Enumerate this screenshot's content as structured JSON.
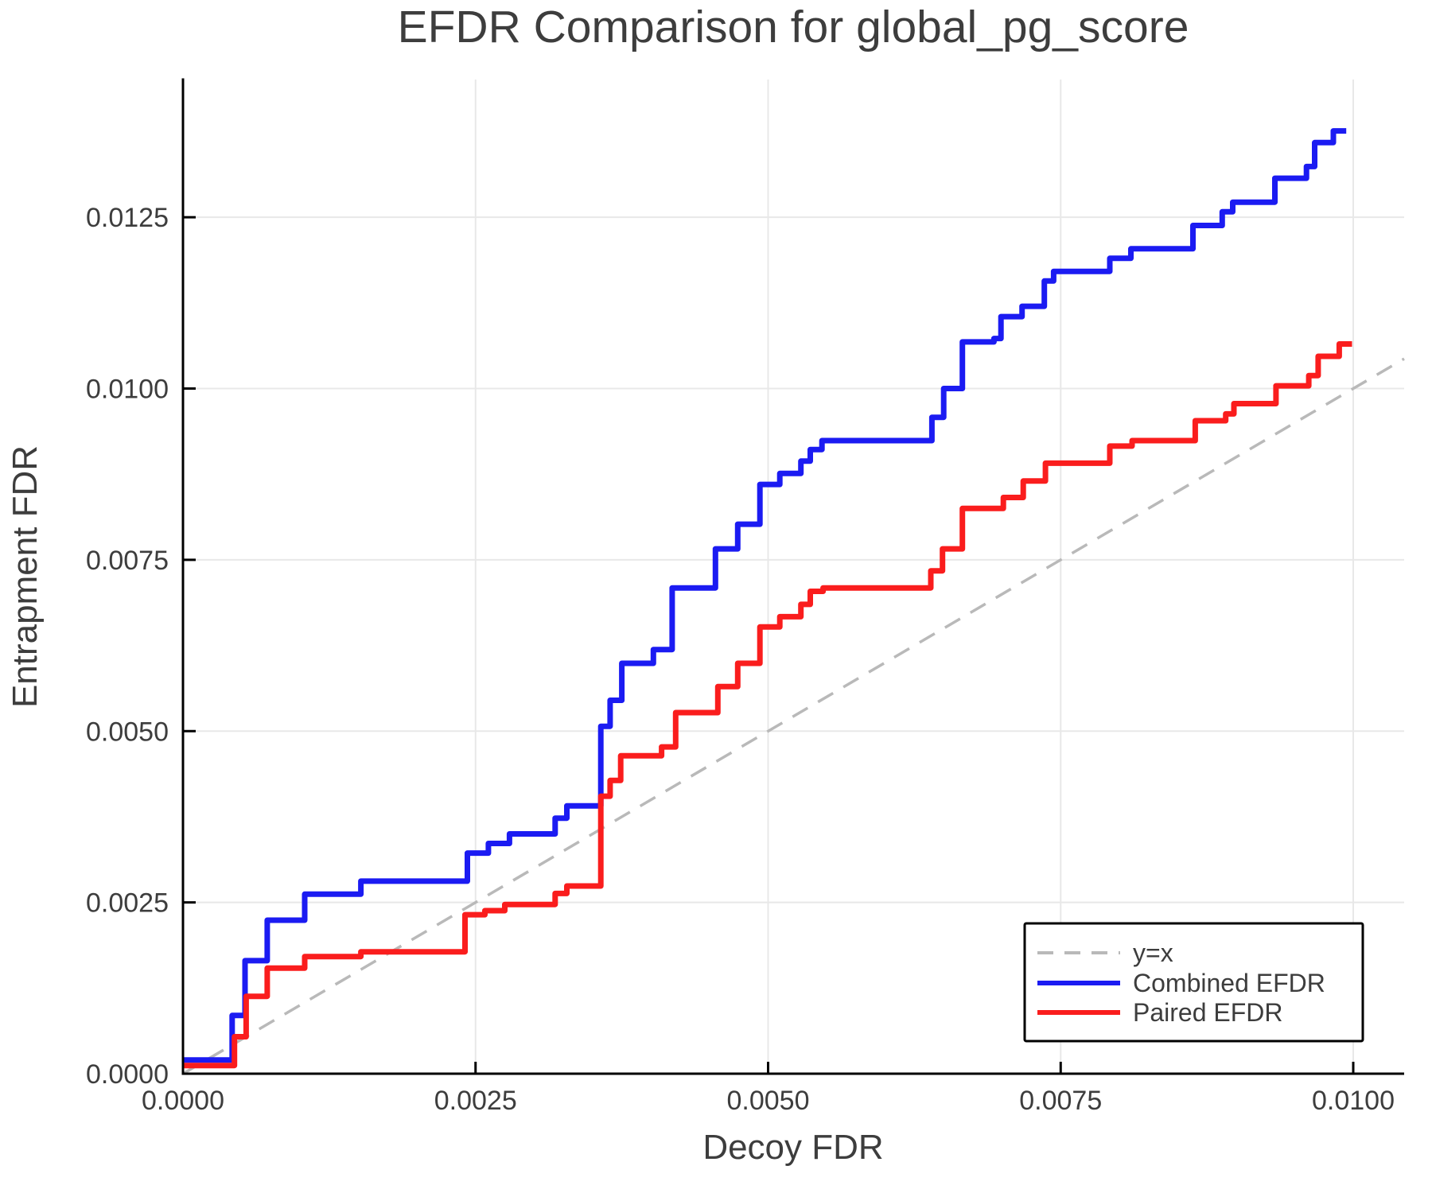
{
  "chart_data": {
    "type": "line",
    "title": "EFDR Comparison for global_pg_score",
    "xlabel": "Decoy FDR",
    "ylabel": "Entrapment FDR",
    "grid": true,
    "legend_position": "bottom-right",
    "colors": {
      "grid": "#e8e8e8",
      "spine": "#000000",
      "text": "#3d3d3d",
      "identity": "#b9b9b9",
      "combined": "#1b1bf2",
      "paired": "#fa1d1d"
    },
    "x_axis": {
      "min": 0,
      "max": 0.010435,
      "ticks": [
        {
          "v": 0.0,
          "label": "0.0000"
        },
        {
          "v": 0.0025,
          "label": "0.0025"
        },
        {
          "v": 0.005,
          "label": "0.0050"
        },
        {
          "v": 0.0075,
          "label": "0.0075"
        },
        {
          "v": 0.01,
          "label": "0.0100"
        }
      ]
    },
    "y_axis": {
      "min": 0,
      "max": 0.01451,
      "ticks": [
        {
          "v": 0.0,
          "label": "0.0000"
        },
        {
          "v": 0.0025,
          "label": "0.0025"
        },
        {
          "v": 0.005,
          "label": "0.0050"
        },
        {
          "v": 0.0075,
          "label": "0.0075"
        },
        {
          "v": 0.01,
          "label": "0.0100"
        },
        {
          "v": 0.0125,
          "label": "0.0125"
        }
      ]
    },
    "series": [
      {
        "name": "y=x",
        "type": "line",
        "color": "#b9b9b9",
        "dash": true,
        "points": [
          [
            0,
            0
          ],
          [
            0.010435,
            0.010435
          ]
        ]
      },
      {
        "name": "Combined EFDR",
        "type": "step-hv",
        "color": "#1b1bf2",
        "end_x": 0.00994,
        "points": [
          [
            0.0,
            0.0002
          ],
          [
            0.00042,
            0.00085
          ],
          [
            0.00053,
            0.00165
          ],
          [
            0.00072,
            0.00224
          ],
          [
            0.00104,
            0.00262
          ],
          [
            0.00152,
            0.00281
          ],
          [
            0.00243,
            0.00322
          ],
          [
            0.00261,
            0.00336
          ],
          [
            0.00279,
            0.0035
          ],
          [
            0.00318,
            0.00373
          ],
          [
            0.00328,
            0.00391
          ],
          [
            0.00357,
            0.00507
          ],
          [
            0.00365,
            0.00545
          ],
          [
            0.00375,
            0.00599
          ],
          [
            0.00402,
            0.00619
          ],
          [
            0.00418,
            0.00709
          ],
          [
            0.00455,
            0.00766
          ],
          [
            0.00474,
            0.00802
          ],
          [
            0.00493,
            0.0086
          ],
          [
            0.0051,
            0.00876
          ],
          [
            0.00528,
            0.00894
          ],
          [
            0.00536,
            0.00911
          ],
          [
            0.00546,
            0.00924
          ],
          [
            0.0064,
            0.00958
          ],
          [
            0.0065,
            0.01
          ],
          [
            0.00666,
            0.01068
          ],
          [
            0.00693,
            0.01073
          ],
          [
            0.00699,
            0.01105
          ],
          [
            0.00717,
            0.0112
          ],
          [
            0.00736,
            0.01157
          ],
          [
            0.00744,
            0.01171
          ],
          [
            0.00792,
            0.0119
          ],
          [
            0.0081,
            0.01204
          ],
          [
            0.00863,
            0.01238
          ],
          [
            0.00888,
            0.01258
          ],
          [
            0.00897,
            0.01272
          ],
          [
            0.00933,
            0.01307
          ],
          [
            0.0096,
            0.01324
          ],
          [
            0.00967,
            0.01359
          ],
          [
            0.00983,
            0.01376
          ]
        ]
      },
      {
        "name": "Paired EFDR",
        "type": "step-hv",
        "color": "#fa1d1d",
        "end_x": 0.00999,
        "points": [
          [
            0.0,
            0.00012
          ],
          [
            0.00044,
            0.00054
          ],
          [
            0.00054,
            0.00113
          ],
          [
            0.00072,
            0.00154
          ],
          [
            0.00104,
            0.00171
          ],
          [
            0.00152,
            0.00178
          ],
          [
            0.00241,
            0.00232
          ],
          [
            0.00258,
            0.00238
          ],
          [
            0.00275,
            0.00247
          ],
          [
            0.00318,
            0.00263
          ],
          [
            0.00328,
            0.00274
          ],
          [
            0.00357,
            0.00405
          ],
          [
            0.00365,
            0.00428
          ],
          [
            0.00374,
            0.00464
          ],
          [
            0.00409,
            0.00477
          ],
          [
            0.00421,
            0.00527
          ],
          [
            0.00457,
            0.00565
          ],
          [
            0.00474,
            0.00599
          ],
          [
            0.00493,
            0.00652
          ],
          [
            0.0051,
            0.00667
          ],
          [
            0.00528,
            0.00685
          ],
          [
            0.00536,
            0.00704
          ],
          [
            0.00547,
            0.00709
          ],
          [
            0.00639,
            0.00734
          ],
          [
            0.00649,
            0.00766
          ],
          [
            0.00666,
            0.00825
          ],
          [
            0.00701,
            0.00841
          ],
          [
            0.00718,
            0.00865
          ],
          [
            0.00737,
            0.00891
          ],
          [
            0.00792,
            0.00916
          ],
          [
            0.00811,
            0.00924
          ],
          [
            0.00865,
            0.00953
          ],
          [
            0.00891,
            0.00963
          ],
          [
            0.00898,
            0.00978
          ],
          [
            0.00934,
            0.01004
          ],
          [
            0.00962,
            0.01019
          ],
          [
            0.0097,
            0.01047
          ],
          [
            0.00988,
            0.01065
          ]
        ]
      }
    ]
  }
}
